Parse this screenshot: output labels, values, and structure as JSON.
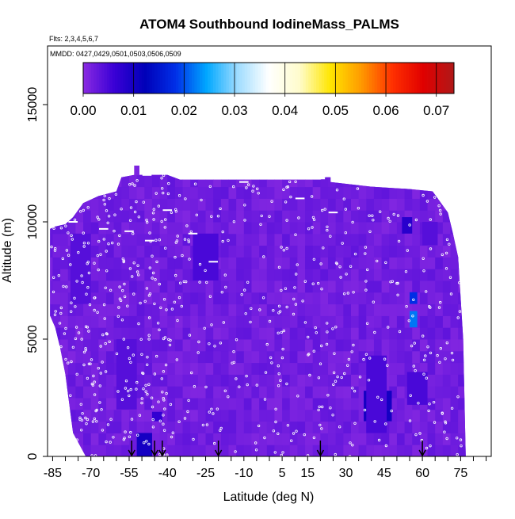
{
  "chart_data": {
    "type": "heatmap",
    "title": "ATOM4 Southbound IodineMass_PALMS",
    "subtitle_flights": "Flts: 2,3,4,5,6,7",
    "subtitle_dates": "MMDD: 0427,0429,0501,0503,0506,0509",
    "xlabel": "Latitude (deg N)",
    "ylabel": "Altitude (m)",
    "xlim": [
      -87,
      87
    ],
    "ylim": [
      0,
      17500
    ],
    "x_ticks": [
      "-85",
      "-70",
      "-55",
      "-40",
      "-25",
      "-10",
      "5",
      "15",
      "30",
      "45",
      "60",
      "75"
    ],
    "x_tick_values": [
      -85,
      -70,
      -55,
      -40,
      -25,
      -10,
      5,
      15,
      30,
      45,
      60,
      75
    ],
    "x_minor_ticks": [
      -80,
      -75,
      -65,
      -60,
      -50,
      -45,
      -35,
      -30,
      -20,
      -15,
      -5,
      0,
      10,
      20,
      25,
      35,
      40,
      50,
      55,
      65,
      70,
      80,
      85
    ],
    "y_ticks": [
      "0",
      "5000",
      "10000",
      "15000"
    ],
    "y_tick_values": [
      0,
      5000,
      10000,
      15000
    ],
    "colorbar": {
      "ticks": [
        "0.00",
        "0.01",
        "0.02",
        "0.03",
        "0.04",
        "0.05",
        "0.06",
        "0.07"
      ],
      "tick_values": [
        0,
        0.01,
        0.02,
        0.03,
        0.04,
        0.05,
        0.06,
        0.07
      ],
      "range": [
        0,
        0.0735
      ],
      "colors": [
        "#8a2be2",
        "#3a00d6",
        "#0000b8",
        "#0030e8",
        "#00a8ff",
        "#9fdcff",
        "#ffffff",
        "#fffccc",
        "#ffe600",
        "#ff9a00",
        "#ff3000",
        "#e00000",
        "#b01818"
      ]
    },
    "background_value": 0.002,
    "coverage_outline": [
      [
        -86,
        9700
      ],
      [
        -84,
        9800
      ],
      [
        -80,
        9900
      ],
      [
        -77,
        10200
      ],
      [
        -73,
        10800
      ],
      [
        -67,
        11100
      ],
      [
        -60,
        11300
      ],
      [
        -58,
        11900
      ],
      [
        -53,
        12000
      ],
      [
        -53,
        12400
      ],
      [
        -51,
        12400
      ],
      [
        -51,
        12000
      ],
      [
        -40,
        12000
      ],
      [
        -35,
        11800
      ],
      [
        -10,
        11800
      ],
      [
        10,
        11800
      ],
      [
        20,
        11800
      ],
      [
        22,
        11900
      ],
      [
        24,
        11900
      ],
      [
        24,
        11700
      ],
      [
        40,
        11500
      ],
      [
        55,
        11400
      ],
      [
        64,
        11300
      ],
      [
        70,
        10400
      ],
      [
        72,
        9500
      ],
      [
        74,
        8500
      ],
      [
        76,
        5000
      ],
      [
        77,
        0
      ],
      [
        -72,
        0
      ],
      [
        -77,
        1000
      ],
      [
        -80,
        3500
      ],
      [
        -82,
        4600
      ],
      [
        -84,
        5500
      ],
      [
        -86,
        6000
      ],
      [
        -86,
        9700
      ]
    ],
    "enhanced_regions": [
      {
        "x0": -52,
        "x1": -46,
        "y0": 0,
        "y1": 1000,
        "value": 0.01
      },
      {
        "x0": -46,
        "x1": -42,
        "y0": 1500,
        "y1": 1900,
        "value": 0.007
      },
      {
        "x0": 37,
        "x1": 48,
        "y0": 1500,
        "y1": 2800,
        "value": 0.01
      },
      {
        "x0": 38,
        "x1": 46,
        "y0": 1000,
        "y1": 4300,
        "value": 0.005
      },
      {
        "x0": 54,
        "x1": 62,
        "y0": 2200,
        "y1": 3600,
        "value": 0.005
      },
      {
        "x0": 55,
        "x1": 58,
        "y0": 5500,
        "y1": 6200,
        "value": 0.022
      },
      {
        "x0": 55,
        "x1": 58,
        "y0": 6500,
        "y1": 7000,
        "value": 0.018
      },
      {
        "x0": 52,
        "x1": 56,
        "y0": 9500,
        "y1": 10200,
        "value": 0.008
      },
      {
        "x0": 60,
        "x1": 66,
        "y0": 9000,
        "y1": 10000,
        "value": 0.004
      },
      {
        "x0": -30,
        "x1": -20,
        "y0": 7500,
        "y1": 9500,
        "value": 0.005
      },
      {
        "x0": -60,
        "x1": -52,
        "y0": 2000,
        "y1": 5000,
        "value": 0.004
      },
      {
        "x0": -78,
        "x1": -70,
        "y0": 6500,
        "y1": 9500,
        "value": 0.004
      }
    ],
    "arrows_x": [
      -54,
      -45,
      -42,
      -20,
      20,
      60
    ]
  }
}
